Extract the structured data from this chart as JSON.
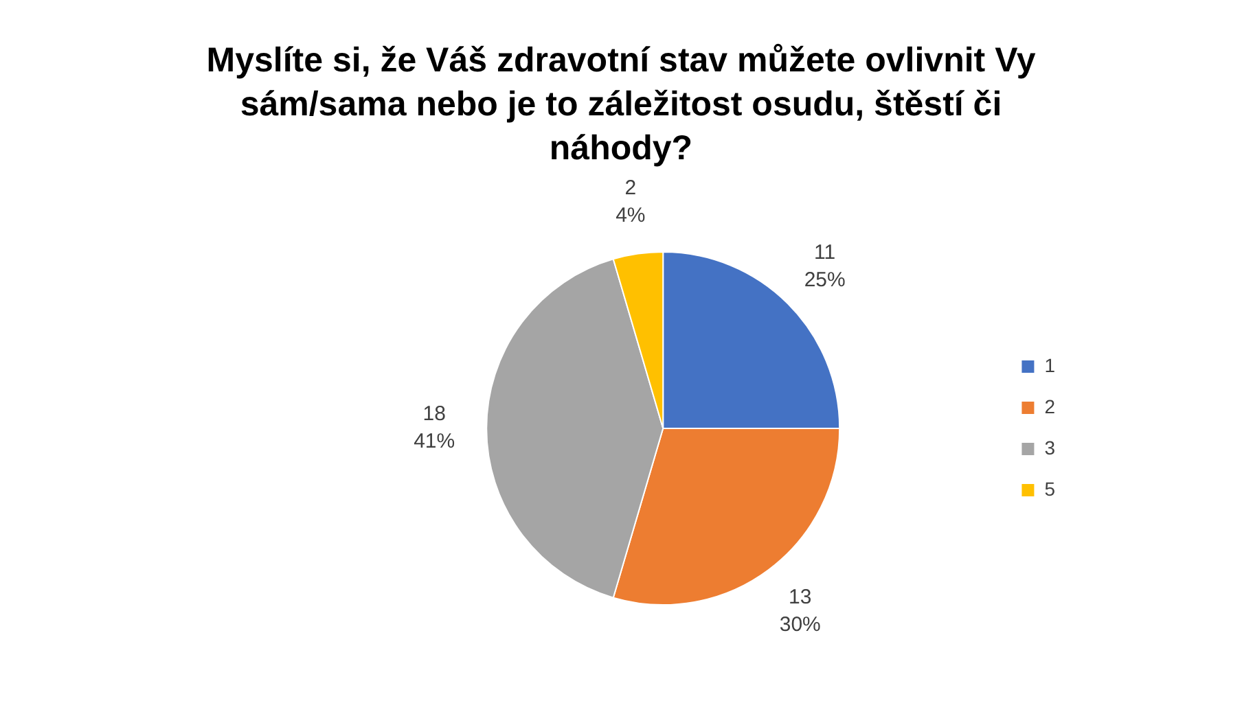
{
  "chart_data": {
    "type": "pie",
    "title": "Myslíte si, že Váš zdravotní stav můžete ovlivnit Vy sám/sama nebo je to záležitost osudu, štěstí či náhody?",
    "categories": [
      "1",
      "2",
      "3",
      "5"
    ],
    "values": [
      11,
      13,
      18,
      2
    ],
    "colors": [
      "#4472c4",
      "#ed7d31",
      "#a5a5a5",
      "#ffc000"
    ],
    "value_labels": [
      "11\n25%",
      "13\n30%",
      "18\n41%",
      "2\n4%"
    ],
    "legend": "right"
  }
}
